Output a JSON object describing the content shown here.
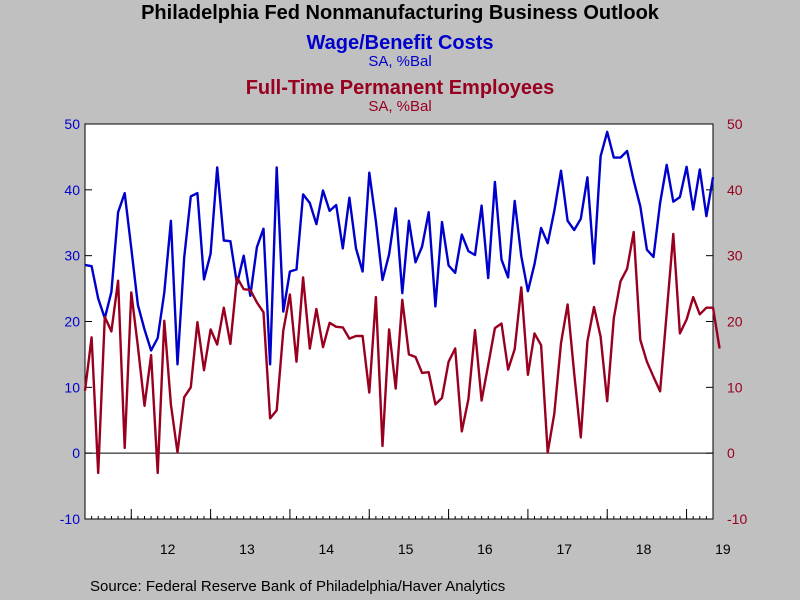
{
  "title": "Philadelphia Fed Nonmanufacturing Business Outlook",
  "source": "Source:  Federal Reserve Bank of Philadelphia/Haver Analytics",
  "chart_data": {
    "type": "line",
    "ylim": [
      -10,
      50
    ],
    "y_ticks": [
      -10,
      0,
      10,
      20,
      30,
      40,
      50
    ],
    "y_tick_labels": [
      "-10",
      "0",
      "10",
      "20",
      "30",
      "40",
      "50"
    ],
    "x_tick_labels": [
      "12",
      "13",
      "14",
      "15",
      "16",
      "17",
      "18",
      "19"
    ],
    "grid": false,
    "zero_line": true,
    "colors": {
      "left_axis": "#0000cc",
      "right_axis": "#990020",
      "background": "#c0c0c0",
      "plot_bg": "#ffffff"
    },
    "series": [
      {
        "name": "Wage/Benefit Costs",
        "unit": "SA, %Bal",
        "axis": "left",
        "color": "#0000cc",
        "values": [
          28.6,
          28.4,
          23.5,
          20.5,
          24.5,
          36.6,
          39.5,
          31.1,
          22.5,
          18.8,
          15.6,
          17.5,
          24.4,
          35.3,
          13.5,
          29.7,
          39,
          39.5,
          26.4,
          30.3,
          43.4,
          32.3,
          32.2,
          25.7,
          30,
          23.9,
          31.3,
          34.1,
          13.5,
          43.4,
          21.5,
          27.6,
          27.9,
          39.3,
          38,
          34.8,
          39.9,
          36.8,
          37.7,
          31.1,
          38.8,
          31.1,
          27.6,
          42.6,
          35.2,
          26.3,
          30.2,
          37.2,
          24.3,
          35.3,
          29,
          31.4,
          36.6,
          22.3,
          35.1,
          28.5,
          27.4,
          33.2,
          30.7,
          30.1,
          37.6,
          26.6,
          41.2,
          29.4,
          26.7,
          38.3,
          29.9,
          24.6,
          28.7,
          34.2,
          31.9,
          36.8,
          42.9,
          35.3,
          33.9,
          35.6,
          41.9,
          28.8,
          45.1,
          48.8,
          44.9,
          44.9,
          45.9,
          41.4,
          37.5,
          30.9,
          29.8,
          38,
          43.8,
          38.2,
          38.9,
          43.5,
          37,
          43.1,
          36,
          41.9
        ]
      },
      {
        "name": "Full-Time Permanent Employees",
        "unit": "SA, %Bal",
        "axis": "right",
        "color": "#990020",
        "values": [
          9.5,
          17.6,
          -3,
          20.7,
          18.5,
          26.2,
          0.8,
          24.4,
          16.2,
          7.2,
          14.9,
          -3,
          20.1,
          7.4,
          0.1,
          8.5,
          10,
          19.9,
          12.6,
          18.8,
          16.5,
          22.1,
          16.6,
          26.7,
          24.9,
          24.8,
          22.9,
          21.4,
          5.3,
          6.5,
          18.6,
          24.1,
          13.9,
          26.7,
          15.9,
          21.9,
          16.1,
          19.8,
          19.2,
          19.1,
          17.4,
          17.8,
          17.8,
          9.2,
          23.7,
          1.1,
          18.8,
          9.8,
          23.3,
          15,
          14.6,
          12.2,
          12.3,
          7.4,
          8.4,
          13.9,
          15.9,
          3.3,
          8.2,
          18.7,
          8,
          13.4,
          19,
          19.7,
          12.7,
          15.8,
          25.2,
          11.9,
          18.2,
          16.4,
          0.1,
          6,
          16.7,
          22.6,
          12.1,
          2.4,
          17,
          22.2,
          17.7,
          7.9,
          20.5,
          26.1,
          28,
          33.6,
          17.2,
          13.9,
          11.6,
          9.4,
          21.3,
          33.3,
          18.2,
          20.3,
          23.7,
          21.1,
          22.1,
          22.1,
          15.9
        ]
      }
    ]
  }
}
